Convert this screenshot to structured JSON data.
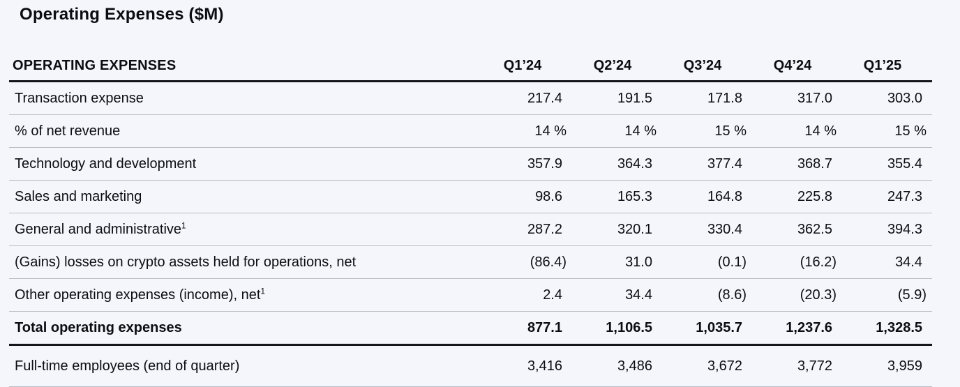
{
  "colors": {
    "background": "#f4f6fb",
    "text": "#0c0d10",
    "rule_thin": "#b9bdc4",
    "rule_thick": "#15161a"
  },
  "title": "Operating Expenses ($M)",
  "table": {
    "header": {
      "label": "OPERATING EXPENSES",
      "columns": [
        "Q1’24",
        "Q2’24",
        "Q3’24",
        "Q4’24",
        "Q1’25"
      ]
    },
    "rows": [
      {
        "label": "Transaction expense",
        "values": [
          "217.4",
          "191.5",
          "171.8",
          "317.0",
          "303.0"
        ]
      },
      {
        "label": "% of net revenue",
        "values": [
          "14 %",
          "14 %",
          "15 %",
          "14 %",
          "15 %"
        ]
      },
      {
        "label": "Technology and development",
        "values": [
          "357.9",
          "364.3",
          "377.4",
          "368.7",
          "355.4"
        ]
      },
      {
        "label": "Sales and marketing",
        "values": [
          "98.6",
          "165.3",
          "164.8",
          "225.8",
          "247.3"
        ]
      },
      {
        "label": "General and administrative",
        "footnote": "1",
        "values": [
          "287.2",
          "320.1",
          "330.4",
          "362.5",
          "394.3"
        ]
      },
      {
        "label": "(Gains) losses on crypto assets held for operations, net",
        "values": [
          "(86.4)",
          "31.0",
          "(0.1)",
          "(16.2)",
          "34.4"
        ]
      },
      {
        "label": "Other operating expenses (income), net",
        "footnote": "1",
        "values": [
          "2.4",
          "34.4",
          "(8.6)",
          "(20.3)",
          "(5.9)"
        ]
      },
      {
        "label": "Total operating expenses",
        "bold": true,
        "thick_rule_below": true,
        "values": [
          "877.1",
          "1,106.5",
          "1,035.7",
          "1,237.6",
          "1,328.5"
        ]
      },
      {
        "label": "Full-time employees (end of quarter)",
        "values": [
          "3,416",
          "3,486",
          "3,672",
          "3,772",
          "3,959"
        ]
      }
    ]
  },
  "chart_data": {
    "type": "table",
    "title": "Operating Expenses ($M)",
    "columns": [
      "OPERATING EXPENSES",
      "Q1’24",
      "Q2’24",
      "Q3’24",
      "Q4’24",
      "Q1’25"
    ],
    "rows": [
      [
        "Transaction expense",
        "217.4",
        "191.5",
        "171.8",
        "317.0",
        "303.0"
      ],
      [
        "% of net revenue",
        "14 %",
        "14 %",
        "15 %",
        "14 %",
        "15 %"
      ],
      [
        "Technology and development",
        "357.9",
        "364.3",
        "377.4",
        "368.7",
        "355.4"
      ],
      [
        "Sales and marketing",
        "98.6",
        "165.3",
        "164.8",
        "225.8",
        "247.3"
      ],
      [
        "General and administrative¹",
        "287.2",
        "320.1",
        "330.4",
        "362.5",
        "394.3"
      ],
      [
        "(Gains) losses on crypto assets held for operations, net",
        "(86.4)",
        "31.0",
        "(0.1)",
        "(16.2)",
        "34.4"
      ],
      [
        "Other operating expenses (income), net¹",
        "2.4",
        "34.4",
        "(8.6)",
        "(20.3)",
        "(5.9)"
      ],
      [
        "Total operating expenses",
        "877.1",
        "1,106.5",
        "1,035.7",
        "1,237.6",
        "1,328.5"
      ],
      [
        "Full-time employees (end of quarter)",
        "3,416",
        "3,486",
        "3,672",
        "3,772",
        "3,959"
      ]
    ]
  }
}
